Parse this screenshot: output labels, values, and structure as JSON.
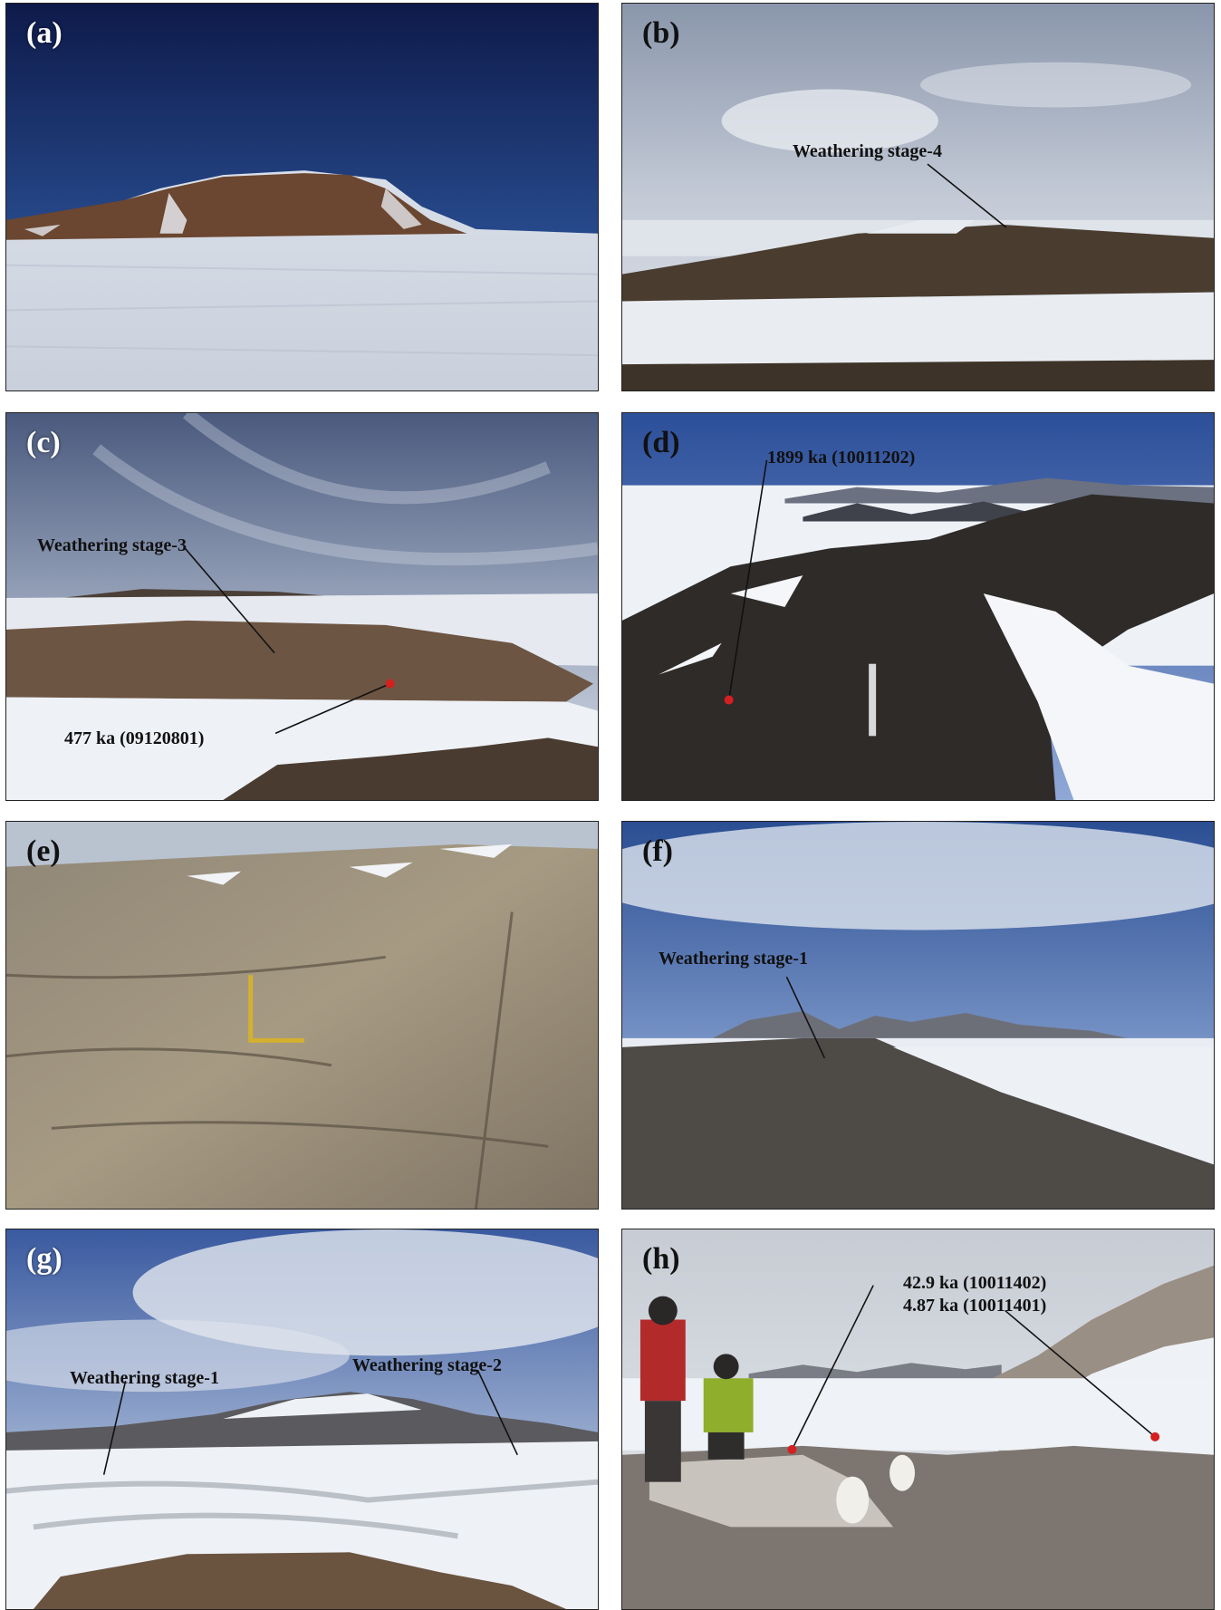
{
  "panels": {
    "a": {
      "label": "(a)"
    },
    "b": {
      "label": "(b)",
      "annotation": "Weathering stage-4"
    },
    "c": {
      "label": "(c)",
      "annotation_top": "Weathering stage-3",
      "annotation_bottom": "477 ka (09120801)"
    },
    "d": {
      "label": "(d)",
      "annotation": "1899 ka (10011202)"
    },
    "e": {
      "label": "(e)"
    },
    "f": {
      "label": "(f)",
      "annotation": "Weathering stage-1"
    },
    "g": {
      "label": "(g)",
      "annotation_left": "Weathering stage-1",
      "annotation_right": "Weathering stage-2"
    },
    "h": {
      "label": "(h)",
      "annotation_1": "42.9 ka (10011402)",
      "annotation_2": "4.87 ka (10011401)"
    }
  },
  "colors": {
    "sample_dot": "#d42020",
    "leader_line": "#111111"
  }
}
